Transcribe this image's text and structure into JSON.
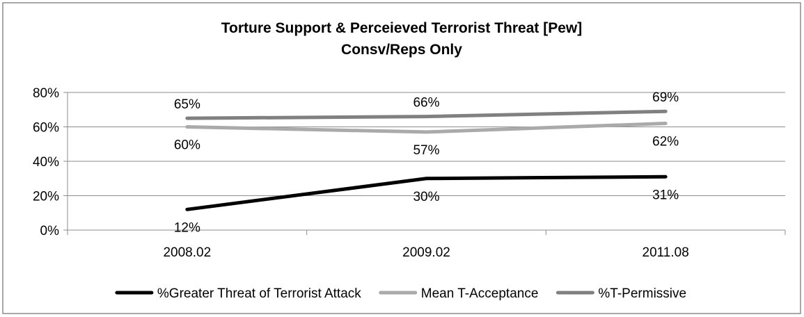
{
  "chart_data": {
    "type": "line",
    "title": "Torture Support & Perceieved Terrorist Threat [Pew]",
    "subtitle": "Consv/Reps Only",
    "categories": [
      "2008.02",
      "2009.02",
      "2011.08"
    ],
    "ylim": [
      0,
      80
    ],
    "yticks": [
      0,
      20,
      40,
      60,
      80
    ],
    "ytick_labels": [
      "0%",
      "20%",
      "40%",
      "60%",
      "80%"
    ],
    "grid": true,
    "legend_position": "bottom",
    "series": [
      {
        "name": "%Greater Threat of Terrorist Attack",
        "values": [
          12,
          30,
          31
        ],
        "labels": [
          "12%",
          "30%",
          "31%"
        ],
        "label_position": "below",
        "color": "#000000"
      },
      {
        "name": "Mean T-Acceptance",
        "values": [
          60,
          57,
          62
        ],
        "labels": [
          "60%",
          "57%",
          "62%"
        ],
        "label_position": "below",
        "color": "#aaaaaa"
      },
      {
        "name": "%T-Permissive",
        "values": [
          65,
          66,
          69
        ],
        "labels": [
          "65%",
          "66%",
          "69%"
        ],
        "label_position": "above",
        "color": "#808080"
      }
    ]
  }
}
